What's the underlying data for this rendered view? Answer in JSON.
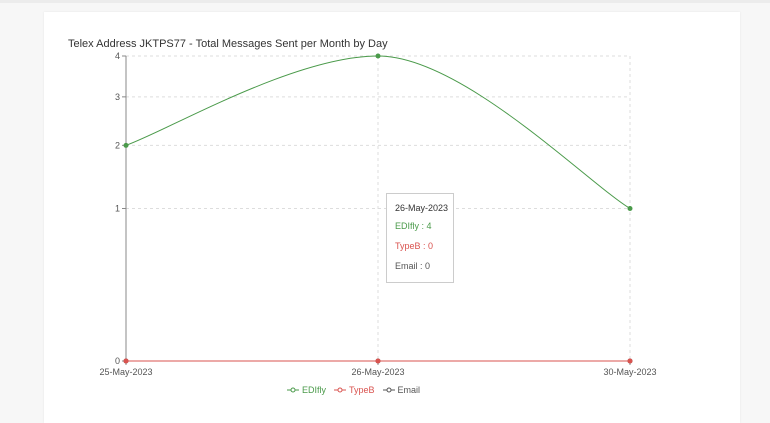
{
  "chart_data": {
    "type": "line",
    "title": "Telex Address JKTPS77 - Total Messages Sent per Month by Day",
    "xlabel": "",
    "ylabel": "",
    "categories": [
      "25-May-2023",
      "26-May-2023",
      "30-May-2023"
    ],
    "y_ticks": [
      "0",
      "1",
      "2",
      "3",
      "4"
    ],
    "ylim": [
      0,
      4
    ],
    "y_scale": "sqrt",
    "grid": true,
    "legend_position": "bottom",
    "series": [
      {
        "name": "EDIfly",
        "values": [
          2,
          4,
          1
        ],
        "color": "#4a9a4a"
      },
      {
        "name": "TypeB",
        "values": [
          0,
          0,
          0
        ],
        "color": "#d9534f"
      },
      {
        "name": "Email",
        "values": [
          0,
          0,
          0
        ],
        "color": "#555555"
      }
    ]
  },
  "tooltip": {
    "date": "26-May-2023",
    "rows": [
      {
        "label": "EDIfly : 4",
        "color": "#4a9a4a"
      },
      {
        "label": "TypeB : 0",
        "color": "#d9534f"
      },
      {
        "label": "Email : 0",
        "color": "#555555"
      }
    ]
  }
}
